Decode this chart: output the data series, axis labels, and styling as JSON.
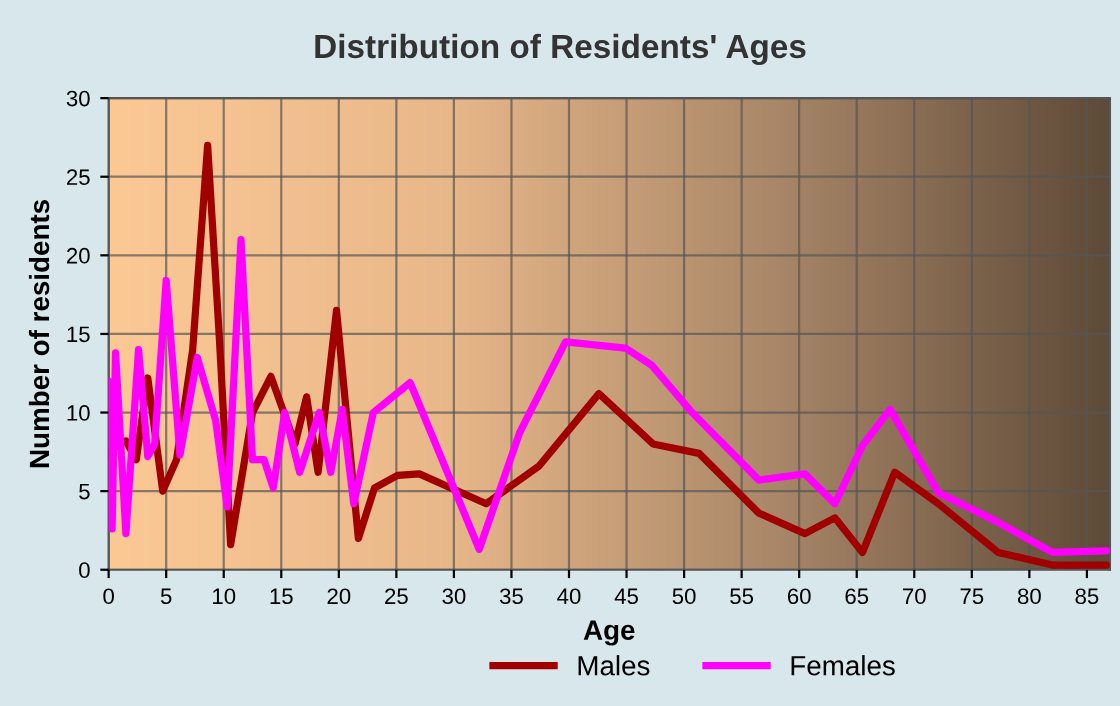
{
  "chart_data": {
    "type": "line",
    "title": "Distribution of Residents' Ages",
    "xlabel": "Age",
    "ylabel": "Number of residents",
    "xlim": [
      0,
      87
    ],
    "ylim": [
      0,
      30
    ],
    "xticks": [
      0,
      5,
      10,
      15,
      20,
      25,
      30,
      35,
      40,
      45,
      50,
      55,
      60,
      65,
      70,
      75,
      80,
      85
    ],
    "yticks": [
      0,
      5,
      10,
      15,
      20,
      25,
      30
    ],
    "grid": true,
    "legend": "bottom",
    "marker": "none",
    "line_style": "solid",
    "series": [
      {
        "name": "Males",
        "color": "#a00000",
        "x": [
          0,
          0.7,
          1.5,
          2.4,
          3.4,
          4.7,
          5.9,
          7.3,
          8.6,
          9.6,
          10.6,
          12.5,
          14.1,
          16.2,
          17.2,
          18.2,
          19.8,
          21.7,
          23.1,
          25.1,
          27,
          32.8,
          37.4,
          42.6,
          47.3,
          51.3,
          56.5,
          60.5,
          63.1,
          65.5,
          68.3,
          72.1,
          77.3,
          82,
          86.7
        ],
        "values": [
          7.3,
          8,
          8.2,
          7,
          12.2,
          5,
          7,
          14,
          27,
          15,
          1.6,
          10,
          12.3,
          8,
          11,
          6.2,
          16.5,
          2,
          5.2,
          6,
          6.1,
          4.2,
          6.6,
          11.2,
          8,
          7.4,
          3.6,
          2.3,
          3.3,
          1.1,
          6.2,
          4.2,
          1.1,
          0.3,
          0.3
        ]
      },
      {
        "name": "Females",
        "color": "#ff00ff",
        "x": [
          0,
          0.3,
          0.6,
          1.5,
          2.6,
          3.4,
          4.0,
          5.0,
          6.2,
          7.7,
          9.3,
          10.3,
          11.5,
          12.5,
          13.5,
          14.3,
          15.3,
          16.6,
          18.3,
          19.3,
          20.3,
          21.3,
          23,
          26.2,
          32.2,
          35.7,
          39.7,
          44.9,
          47.2,
          50.7,
          56.5,
          60.5,
          63.1,
          65.5,
          67.9,
          72.1,
          76.8,
          82,
          86.7
        ],
        "values": [
          12,
          2.6,
          13.8,
          2.3,
          14,
          7.2,
          8,
          18.4,
          7.3,
          13.5,
          9.5,
          4,
          21,
          7,
          7,
          5.2,
          10,
          6.2,
          10,
          6.2,
          10.2,
          4.2,
          10,
          11.9,
          1.3,
          8.7,
          14.5,
          14.1,
          13,
          10,
          5.7,
          6.1,
          4.2,
          7.9,
          10.2,
          4.9,
          3.2,
          1.1,
          1.2
        ]
      }
    ]
  }
}
